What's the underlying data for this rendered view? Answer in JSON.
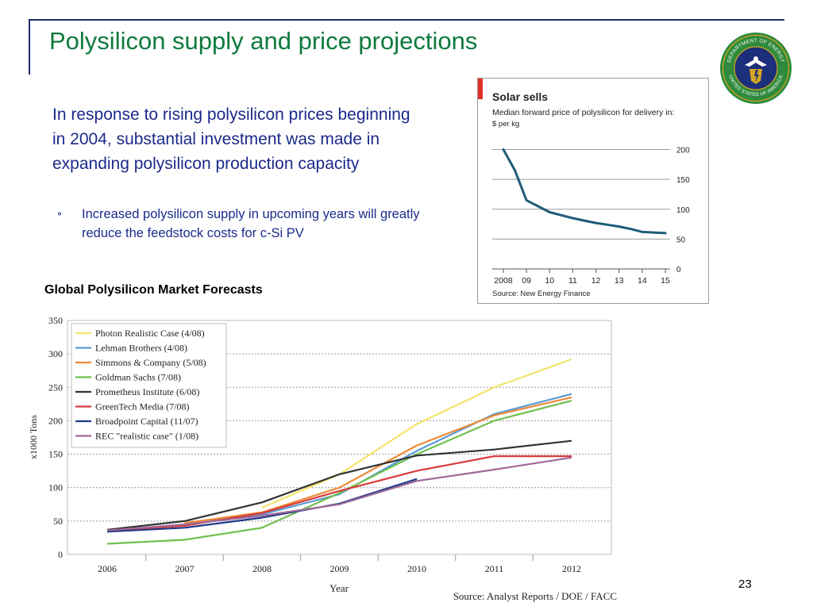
{
  "slide": {
    "title": "Polysilicon supply and price projections",
    "paragraph": "In response to rising polysilicon prices beginning in 2004, substantial investment was made in expanding polysilicon production capacity",
    "bullet_mark": "⚬",
    "bullet": "Increased polysilicon supply in upcoming years will greatly reduce the feedstock costs for c-Si PV",
    "section_label": "Global Polysilicon Market Forecasts",
    "page_number": "23",
    "seal": {
      "icon": "doe-seal-icon",
      "top_text": "DEPARTMENT OF ENERGY",
      "bottom_text": "UNITED STATES OF AMERICA",
      "colors": {
        "ring": "#2f8a3d",
        "inner": "#1c2f7a",
        "gold": "#d4a51f"
      }
    },
    "colors": {
      "title": "#0f7a3e",
      "text": "#1b2a8a",
      "frame": "#1f2a6b"
    }
  },
  "chart_data": [
    {
      "type": "line",
      "title": "Solar sells",
      "subtitle": "Median forward price of polysilicon for delivery in:",
      "ylabel": "$ per kg",
      "source": "Source: New Energy Finance",
      "categories": [
        "2008",
        "09",
        "10",
        "11",
        "12",
        "13",
        "14",
        "15"
      ],
      "x": [
        2008,
        2008.5,
        2009,
        2009.5,
        2010,
        2010.5,
        2011,
        2011.5,
        2012,
        2012.5,
        2013,
        2013.5,
        2014,
        2014.5,
        2015
      ],
      "series": [
        {
          "values": [
            200,
            165,
            115,
            105,
            95,
            90,
            85,
            81,
            77,
            74,
            71,
            67,
            62,
            61,
            60
          ]
        }
      ],
      "yticks": [
        0,
        50,
        100,
        150,
        200
      ],
      "ylim": [
        0,
        210
      ],
      "grid": true,
      "colors": {
        "line": "#1f5c7a",
        "accent": "#e0302a",
        "grid": "#9a9a9a"
      }
    },
    {
      "type": "line",
      "title": "",
      "xlabel": "Year",
      "ylabel": "x1000 Tons",
      "source": "Source: Analyst Reports / DOE / FACC",
      "categories": [
        "2006",
        "2007",
        "2008",
        "2009",
        "2010",
        "2011",
        "2012"
      ],
      "yticks": [
        0,
        50,
        100,
        150,
        200,
        250,
        300,
        350
      ],
      "ylim": [
        0,
        350
      ],
      "grid": true,
      "legend": "top-left",
      "series": [
        {
          "name": "Photon Realistic Case (4/08)",
          "color": "#f2e46a",
          "values": [
            null,
            null,
            70,
            120,
            195,
            250,
            292
          ]
        },
        {
          "name": "Lehman Brothers (4/08)",
          "color": "#5b9bd5",
          "values": [
            null,
            45,
            60,
            90,
            155,
            210,
            240
          ]
        },
        {
          "name": "Simmons & Company (5/08)",
          "color": "#ed8b3a",
          "values": [
            null,
            47,
            63,
            100,
            163,
            208,
            235
          ]
        },
        {
          "name": "Goldman Sachs (7/08)",
          "color": "#6fbf4f",
          "values": [
            16,
            22,
            40,
            92,
            150,
            200,
            230
          ]
        },
        {
          "name": "Prometheus Institute (6/08)",
          "color": "#333333",
          "values": [
            37,
            50,
            78,
            120,
            148,
            157,
            170
          ]
        },
        {
          "name": "GreenTech Media (7/08)",
          "color": "#d93a3a",
          "values": [
            35,
            43,
            62,
            95,
            125,
            147,
            147
          ]
        },
        {
          "name": "Broadpoint Capital (11/07)",
          "color": "#1f3a8a",
          "values": [
            34,
            40,
            55,
            76,
            113,
            null,
            null
          ]
        },
        {
          "name": "REC \"realistic case\" (1/08)",
          "color": "#a06898",
          "values": [
            36,
            45,
            58,
            75,
            110,
            127,
            145
          ]
        }
      ]
    }
  ]
}
